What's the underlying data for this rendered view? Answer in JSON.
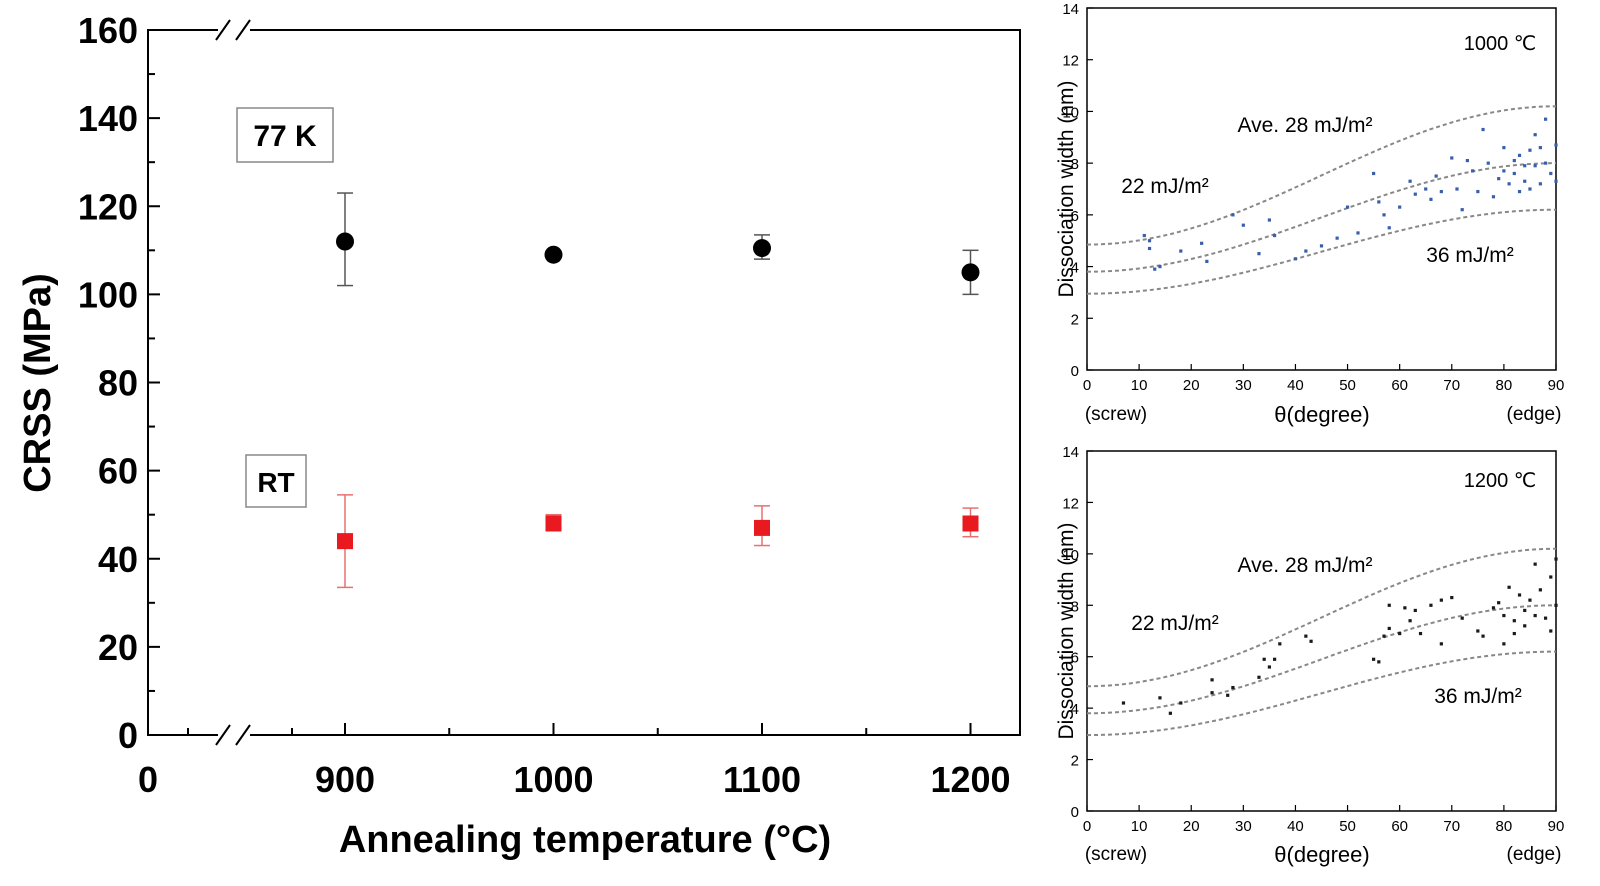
{
  "chart_data": [
    {
      "type": "scatter",
      "title": "",
      "xlabel": "Annealing temperature (°C)",
      "ylabel": "CRSS (MPa)",
      "xlim": [
        0,
        1230
      ],
      "ylim": [
        0,
        160
      ],
      "x_axis_break": true,
      "x_ticks": [
        0,
        900,
        1000,
        1100,
        1200
      ],
      "y_ticks": [
        0,
        20,
        40,
        60,
        80,
        100,
        120,
        140,
        160
      ],
      "legend_placement": "none",
      "grid": false,
      "series": [
        {
          "name": "77 K",
          "color": "#000000",
          "marker": "circle",
          "x": [
            900,
            1000,
            1100,
            1200
          ],
          "y": [
            112,
            109,
            110.5,
            105
          ],
          "err_low": [
            102,
            109,
            108,
            100
          ],
          "err_high": [
            123,
            109,
            113.5,
            110
          ]
        },
        {
          "name": "RT",
          "color": "#e8191f",
          "marker": "square",
          "x": [
            900,
            1000,
            1100,
            1200
          ],
          "y": [
            44,
            48,
            47,
            48
          ],
          "err_low": [
            33.5,
            46.5,
            43,
            45
          ],
          "err_high": [
            54.5,
            50,
            52,
            51.5
          ]
        }
      ]
    },
    {
      "type": "scatter",
      "title": "1000 ℃",
      "xlabel": "θ(degree)",
      "ylabel": "Dissociation width (nm)",
      "x_end_labels": [
        "(screw)",
        "(edge)"
      ],
      "xlim": [
        0,
        90
      ],
      "ylim": [
        0,
        14
      ],
      "x_ticks": [
        0,
        10,
        20,
        30,
        40,
        50,
        60,
        70,
        80,
        90
      ],
      "y_ticks": [
        0,
        2,
        4,
        6,
        8,
        10,
        12,
        14
      ],
      "grid": false,
      "curve_labels": [
        "Ave. 28 mJ/m²",
        "22 mJ/m²",
        "36 mJ/m²"
      ],
      "curves": [
        {
          "start": 4.85,
          "end": 10.2
        },
        {
          "start": 3.8,
          "end": 8.0
        },
        {
          "start": 2.95,
          "end": 6.2
        }
      ],
      "point_color": "#3a5faa",
      "points": [
        [
          11,
          5.2
        ],
        [
          12,
          4.7
        ],
        [
          12,
          5.0
        ],
        [
          13,
          3.9
        ],
        [
          14,
          4.0
        ],
        [
          18,
          4.6
        ],
        [
          22,
          4.9
        ],
        [
          23,
          4.2
        ],
        [
          28,
          6.0
        ],
        [
          30,
          5.6
        ],
        [
          33,
          4.5
        ],
        [
          35,
          5.8
        ],
        [
          36,
          5.2
        ],
        [
          40,
          4.3
        ],
        [
          42,
          4.6
        ],
        [
          45,
          4.8
        ],
        [
          48,
          5.1
        ],
        [
          50,
          6.3
        ],
        [
          52,
          5.3
        ],
        [
          55,
          7.6
        ],
        [
          56,
          6.5
        ],
        [
          57,
          6.0
        ],
        [
          58,
          5.5
        ],
        [
          60,
          6.3
        ],
        [
          62,
          7.3
        ],
        [
          63,
          6.8
        ],
        [
          65,
          7.0
        ],
        [
          66,
          6.6
        ],
        [
          67,
          7.5
        ],
        [
          68,
          6.9
        ],
        [
          70,
          8.2
        ],
        [
          71,
          7.0
        ],
        [
          72,
          6.2
        ],
        [
          73,
          8.1
        ],
        [
          74,
          7.7
        ],
        [
          75,
          6.9
        ],
        [
          76,
          9.3
        ],
        [
          77,
          8.0
        ],
        [
          78,
          6.7
        ],
        [
          79,
          7.4
        ],
        [
          80,
          8.6
        ],
        [
          80,
          7.7
        ],
        [
          81,
          7.2
        ],
        [
          82,
          8.1
        ],
        [
          82,
          7.6
        ],
        [
          83,
          8.3
        ],
        [
          83,
          6.9
        ],
        [
          84,
          7.9
        ],
        [
          84,
          7.3
        ],
        [
          85,
          8.5
        ],
        [
          85,
          7.0
        ],
        [
          86,
          9.1
        ],
        [
          86,
          7.9
        ],
        [
          87,
          8.6
        ],
        [
          87,
          7.2
        ],
        [
          88,
          9.7
        ],
        [
          88,
          8.0
        ],
        [
          89,
          7.6
        ],
        [
          90,
          8.7
        ],
        [
          90,
          7.3
        ]
      ]
    },
    {
      "type": "scatter",
      "title": "1200 ℃",
      "xlabel": "θ(degree)",
      "ylabel": "Dissociation width (nm)",
      "x_end_labels": [
        "(screw)",
        "(edge)"
      ],
      "xlim": [
        0,
        90
      ],
      "ylim": [
        0,
        14
      ],
      "x_ticks": [
        0,
        10,
        20,
        30,
        40,
        50,
        60,
        70,
        80,
        90
      ],
      "y_ticks": [
        0,
        2,
        4,
        6,
        8,
        10,
        12,
        14
      ],
      "grid": false,
      "curve_labels": [
        "Ave. 28 mJ/m²",
        "22 mJ/m²",
        "36 mJ/m²"
      ],
      "curves": [
        {
          "start": 4.85,
          "end": 10.2
        },
        {
          "start": 3.8,
          "end": 8.0
        },
        {
          "start": 2.95,
          "end": 6.2
        }
      ],
      "point_color": "#1a1a1a",
      "points": [
        [
          7,
          4.2
        ],
        [
          14,
          4.4
        ],
        [
          16,
          3.8
        ],
        [
          18,
          4.2
        ],
        [
          24,
          4.6
        ],
        [
          24,
          5.1
        ],
        [
          27,
          4.5
        ],
        [
          28,
          4.8
        ],
        [
          33,
          5.2
        ],
        [
          34,
          5.9
        ],
        [
          35,
          5.6
        ],
        [
          36,
          5.9
        ],
        [
          37,
          6.5
        ],
        [
          42,
          6.8
        ],
        [
          43,
          6.6
        ],
        [
          55,
          5.9
        ],
        [
          56,
          5.8
        ],
        [
          57,
          6.8
        ],
        [
          58,
          7.1
        ],
        [
          58,
          8.0
        ],
        [
          60,
          6.9
        ],
        [
          61,
          7.9
        ],
        [
          62,
          7.4
        ],
        [
          63,
          7.8
        ],
        [
          64,
          6.9
        ],
        [
          66,
          8.0
        ],
        [
          68,
          6.5
        ],
        [
          68,
          8.2
        ],
        [
          70,
          8.3
        ],
        [
          72,
          7.5
        ],
        [
          75,
          7.0
        ],
        [
          76,
          6.8
        ],
        [
          78,
          7.9
        ],
        [
          79,
          8.1
        ],
        [
          80,
          6.5
        ],
        [
          80,
          7.6
        ],
        [
          81,
          8.7
        ],
        [
          82,
          7.4
        ],
        [
          82,
          6.9
        ],
        [
          83,
          8.4
        ],
        [
          84,
          7.8
        ],
        [
          84,
          7.2
        ],
        [
          85,
          8.2
        ],
        [
          86,
          9.6
        ],
        [
          86,
          7.6
        ],
        [
          87,
          8.6
        ],
        [
          88,
          7.5
        ],
        [
          89,
          9.1
        ],
        [
          89,
          7.0
        ],
        [
          90,
          9.8
        ],
        [
          90,
          8.0
        ]
      ]
    }
  ]
}
